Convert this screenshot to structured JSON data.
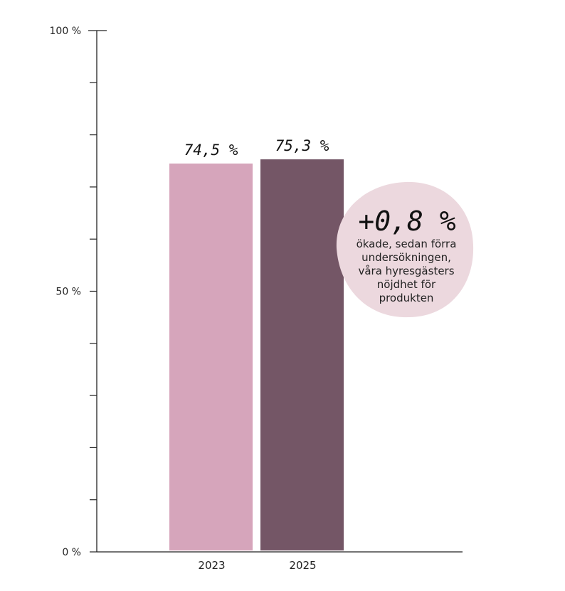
{
  "chart_data": {
    "type": "bar",
    "categories": [
      "2023",
      "2025"
    ],
    "values": [
      74.5,
      75.3
    ],
    "value_labels": [
      "74,5 %",
      "75,3 %"
    ],
    "ylim": [
      0,
      100
    ],
    "y_ticks": [
      0,
      10,
      20,
      30,
      40,
      50,
      60,
      70,
      80,
      90,
      100
    ],
    "y_tick_labels": {
      "0": "0 %",
      "50": "50 %",
      "100": "100 %"
    },
    "title": "",
    "xlabel": "",
    "ylabel": "",
    "grid": false,
    "colors": [
      "#d6a5bb",
      "#745666"
    ],
    "annotation": {
      "headline": "+0,8 %",
      "lines": [
        "ökade, sedan förra",
        "undersökningen,",
        "våra hyresgästers",
        "nöjdhet för",
        "produkten"
      ],
      "color": "#ecd8de"
    }
  }
}
